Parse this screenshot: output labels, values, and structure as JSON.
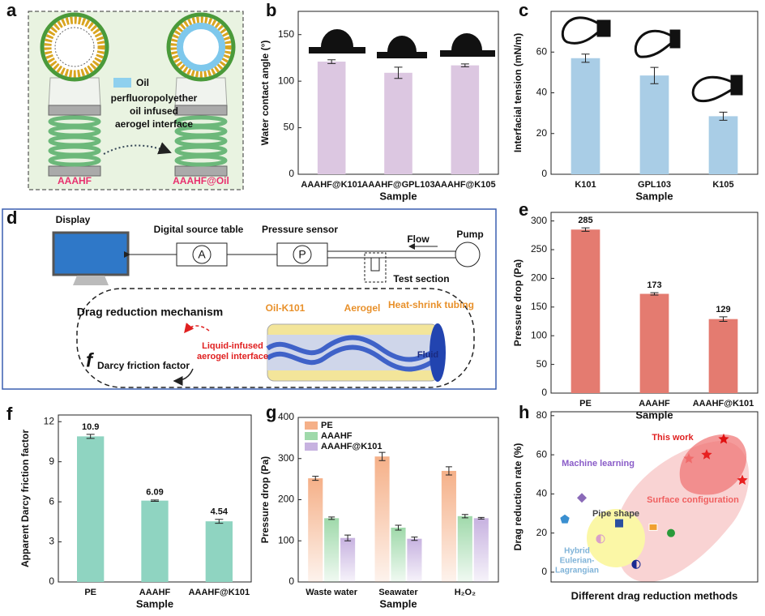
{
  "diagrams": {
    "a": {
      "label": "a",
      "legend": "Oil",
      "annotation": [
        "perfluoropolyether",
        "oil  infused",
        "aerogel interface"
      ],
      "left": "AAAHF",
      "right": "AAAHF@Oil"
    },
    "d": {
      "label": "d",
      "display": "Display",
      "source": "Digital source table",
      "source_symbol": "A",
      "sensor": "Pressure sensor",
      "sensor_symbol": "P",
      "flow": "Flow",
      "pump": "Pump",
      "test": "Test section",
      "mechanism": "Drag reduction mechanism",
      "oil": "Oil-K101",
      "aerogel": "Aerogel",
      "tubing": "Heat-shrink tubing",
      "interface": [
        "Liquid-infused",
        "aerogel interface"
      ],
      "fluid": "Fluid",
      "friction_symbol": "f",
      "friction": "Darcy friction factor"
    }
  },
  "chart_data": [
    {
      "label": "b",
      "type": "bar",
      "ylabel": "Water contact angle (°)",
      "xlabel": "Sample",
      "categories": [
        "AAAHF@K101",
        "AAAHF@GPL103",
        "AAAHF@K105"
      ],
      "values": [
        121,
        109,
        117
      ],
      "errors": [
        2,
        6,
        1.5
      ],
      "color": "#dcc7e1",
      "ylim": [
        0,
        175
      ],
      "yticks": [
        0,
        50,
        100,
        150
      ]
    },
    {
      "label": "c",
      "type": "bar",
      "ylabel": "Interfacial tension (mN/m)",
      "xlabel": "Sample",
      "categories": [
        "K101",
        "GPL103",
        "K105"
      ],
      "values": [
        57,
        48.5,
        28.5
      ],
      "errors": [
        2,
        4,
        2
      ],
      "color": "#a9cde6",
      "ylim": [
        0,
        80
      ],
      "yticks": [
        0,
        20,
        40,
        60
      ]
    },
    {
      "label": "e",
      "type": "bar",
      "ylabel": "Pressure drop (Pa)",
      "xlabel": "Sample",
      "categories": [
        "PE",
        "AAAHF",
        "AAAHF@K101"
      ],
      "values": [
        285,
        173,
        129
      ],
      "errors": [
        3,
        2,
        4
      ],
      "color": "#e47b70",
      "ylim": [
        0,
        315
      ],
      "yticks": [
        0,
        50,
        100,
        150,
        200,
        250,
        300
      ],
      "data_labels": true
    },
    {
      "label": "f",
      "type": "bar",
      "ylabel": "Apparent Darcy friction factor",
      "xlabel": "Sample",
      "categories": [
        "PE",
        "AAAHF",
        "AAAHF@K101"
      ],
      "values": [
        10.9,
        6.09,
        4.54
      ],
      "errors": [
        0.15,
        0.05,
        0.15
      ],
      "color": "#8fd4c1",
      "ylim": [
        0,
        12.5
      ],
      "yticks": [
        0,
        3,
        6,
        9,
        12
      ],
      "data_labels": true
    },
    {
      "label": "g",
      "type": "grouped_bar",
      "ylabel": "Pressure drop (Pa)",
      "xlabel": "Sample",
      "categories": [
        "Waste water",
        "Seawater",
        "H₂O₂"
      ],
      "series": [
        {
          "name": "PE",
          "color": "#f5b088",
          "values": [
            252,
            305,
            270
          ],
          "errors": [
            5,
            10,
            10
          ]
        },
        {
          "name": "AAAHF",
          "color": "#9fd9aa",
          "values": [
            155,
            132,
            160
          ],
          "errors": [
            3,
            6,
            4
          ]
        },
        {
          "name": "AAAHF@K101",
          "color": "#c7b2e0",
          "values": [
            107,
            105,
            155
          ],
          "errors": [
            7,
            4,
            2
          ]
        }
      ],
      "ylim": [
        0,
        400
      ],
      "yticks": [
        0,
        100,
        200,
        300,
        400
      ],
      "legend": "upper left"
    },
    {
      "label": "h",
      "type": "scatter",
      "ylabel": "Drag reduction rate (%)",
      "xlabel": "Different drag reduction methods",
      "values": [
        58,
        60,
        68,
        47,
        27,
        38,
        25,
        23,
        20,
        17,
        4
      ],
      "markers": [
        "star",
        "star",
        "star",
        "star",
        "pentagon",
        "diamond",
        "square",
        "cake",
        "sphere",
        "half",
        "half"
      ],
      "colors": [
        "#f06a6a",
        "#e82020",
        "#e01010",
        "#e82020",
        "#3a8fd0",
        "#8a6ab8",
        "#2a4fa0",
        "#f0a030",
        "#2a9a3a",
        "#d9a0c8",
        "#1a2a90"
      ],
      "annotations": [
        {
          "text": "This work",
          "color": "#e02020"
        },
        {
          "text": "Machine learning",
          "color": "#8a5cc8"
        },
        {
          "text": "Pipe shape",
          "color": "#444"
        },
        {
          "text": "Surface configuration",
          "color": "#f06060"
        },
        {
          "text": "Hybrid",
          "color": "#7fb3d8"
        },
        {
          "text": "Eulerian-",
          "color": "#7fb3d8"
        },
        {
          "text": "Lagrangian",
          "color": "#7fb3d8"
        }
      ],
      "ylim": [
        -5,
        82
      ],
      "yticks": [
        0,
        20,
        40,
        60,
        80
      ]
    }
  ]
}
